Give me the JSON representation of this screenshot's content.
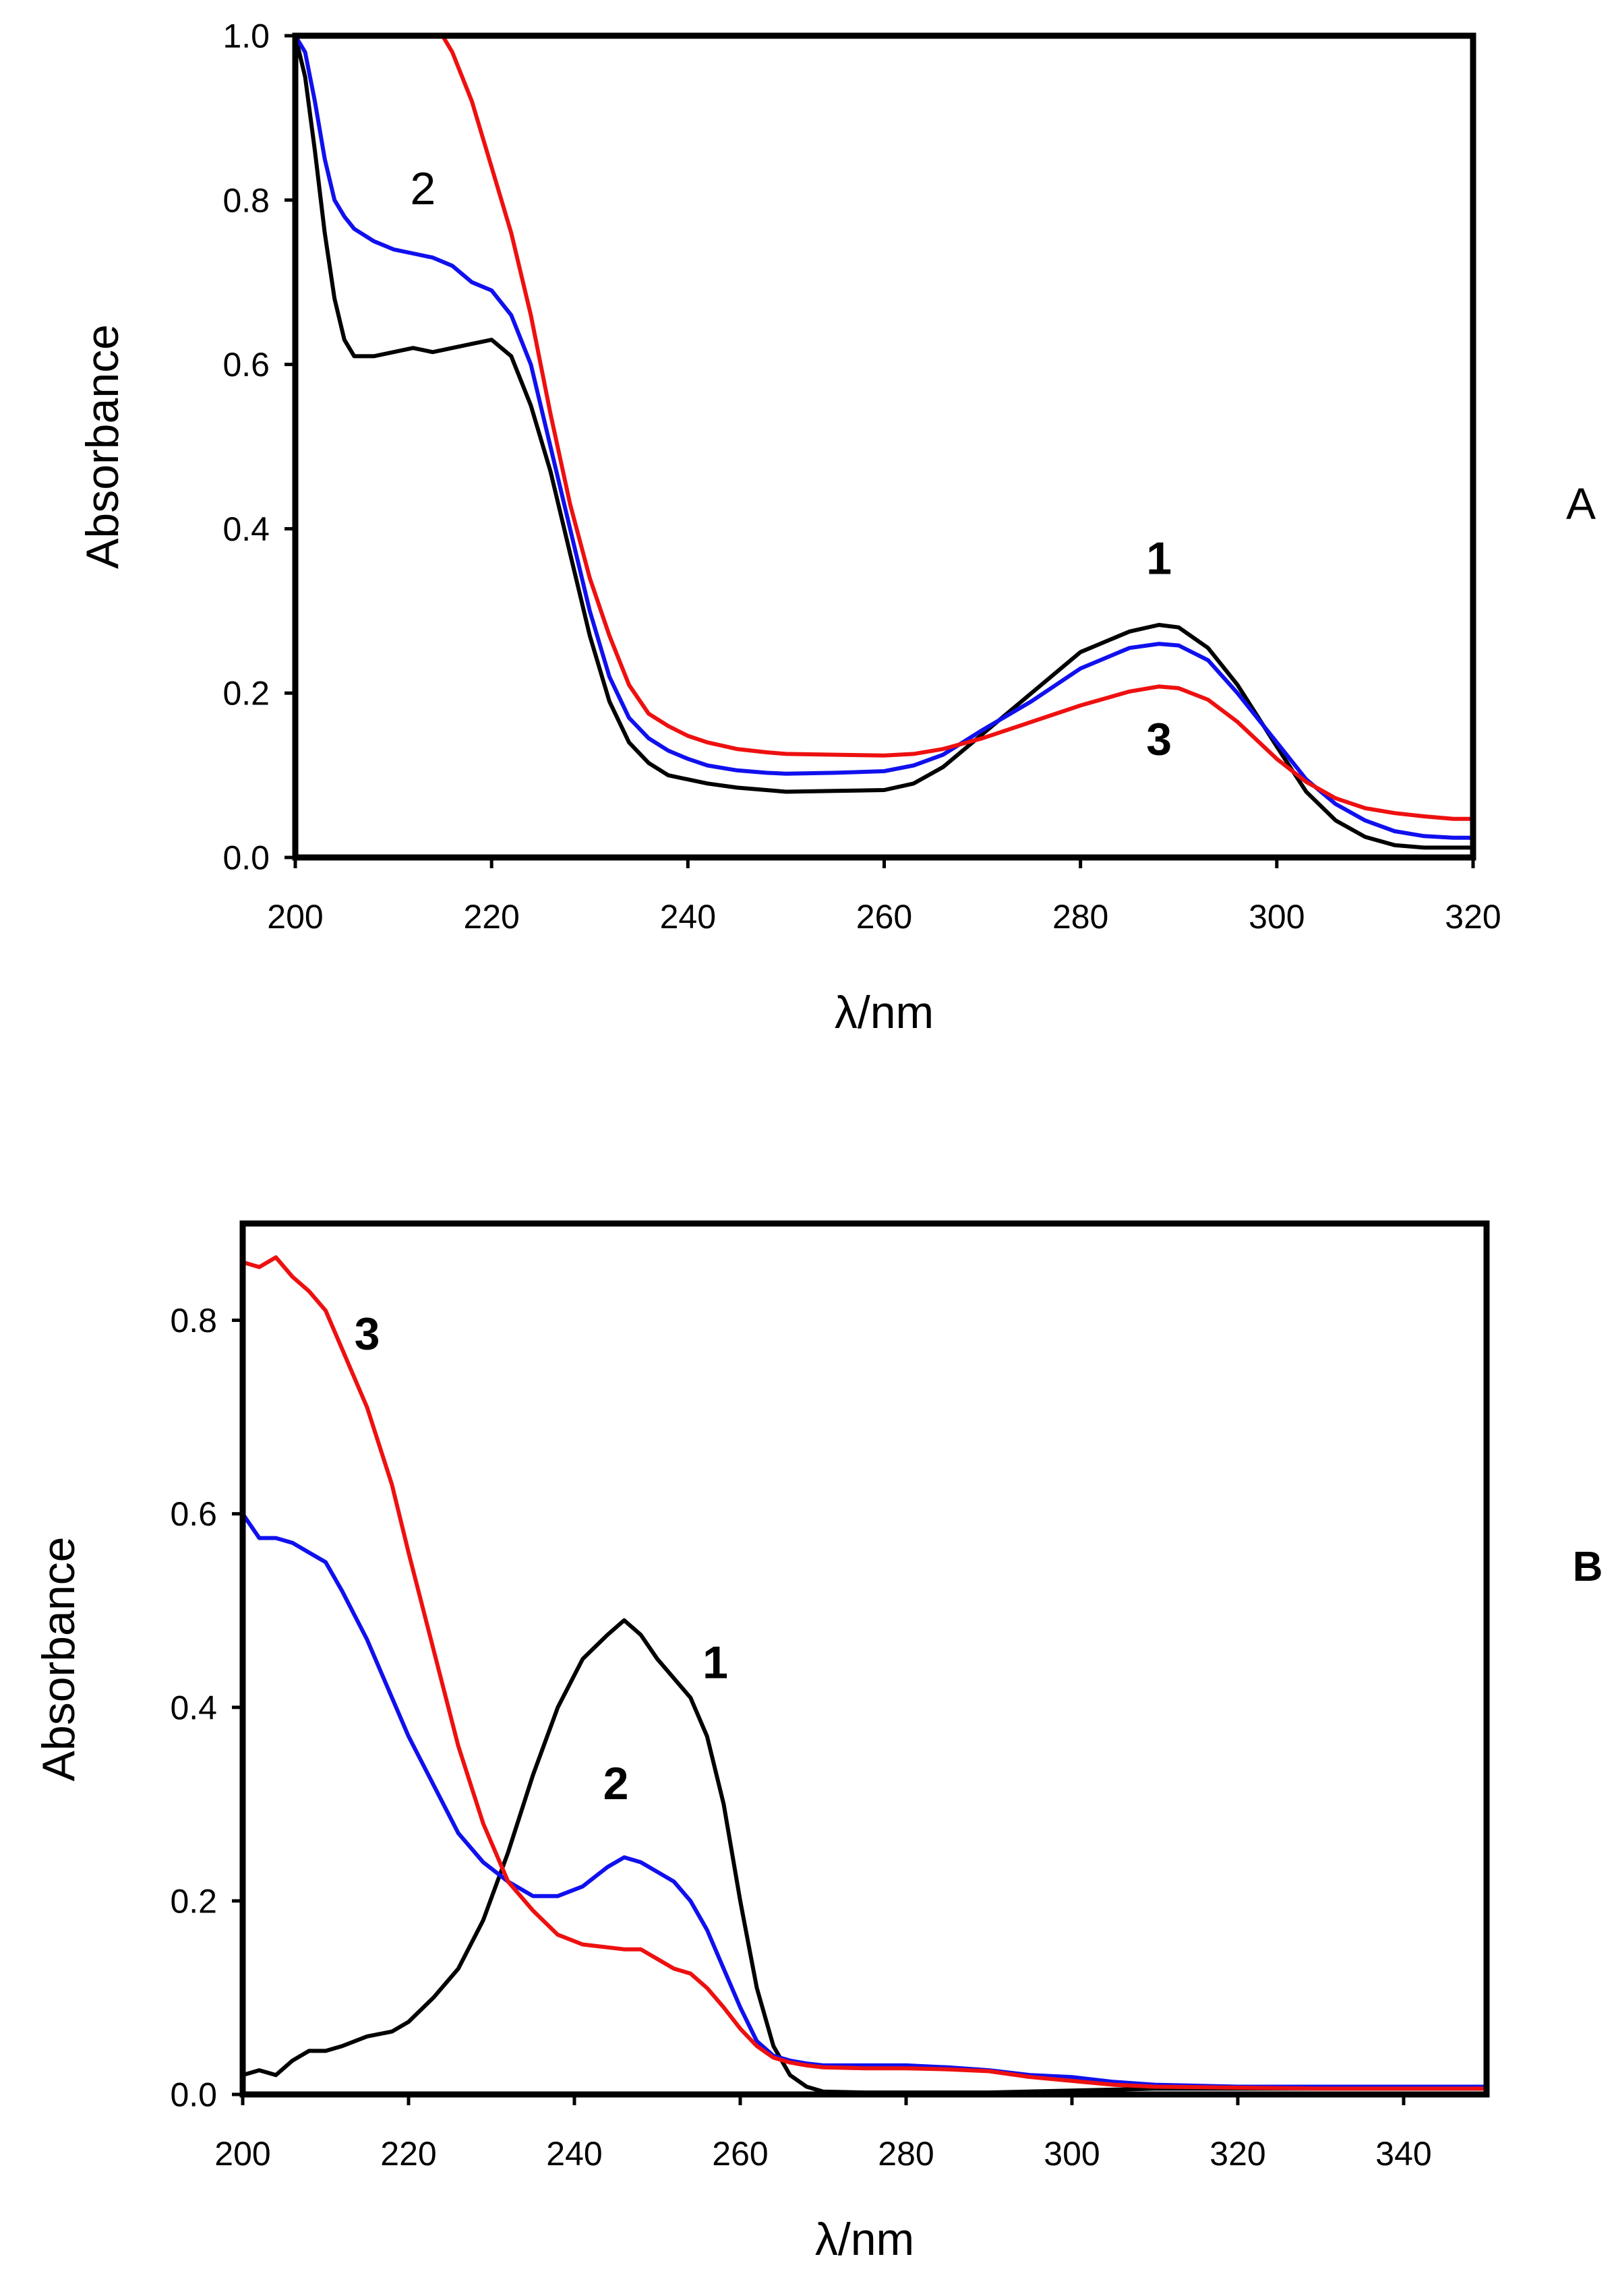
{
  "chart_data": [
    {
      "type": "line",
      "panel_label": "A",
      "xlabel": "λ/nm",
      "ylabel": "Absorbance",
      "xlim": [
        200,
        320
      ],
      "ylim": [
        0,
        1.0
      ],
      "xticks": [
        200,
        220,
        240,
        260,
        280,
        300,
        320
      ],
      "yticks": [
        0.0,
        0.2,
        0.4,
        0.6,
        0.8,
        1.0
      ],
      "xtick_labels": [
        "200",
        "220",
        "240",
        "260",
        "280",
        "300",
        "320"
      ],
      "ytick_labels": [
        "0.0",
        "0.2",
        "0.4",
        "0.6",
        "0.8",
        "1.0"
      ],
      "grid": false,
      "series": [
        {
          "name": "1",
          "color": "#000000",
          "x": [
            200,
            201,
            202,
            203,
            204,
            205,
            206,
            208,
            210,
            212,
            214,
            216,
            218,
            220,
            222,
            224,
            226,
            228,
            230,
            232,
            234,
            236,
            238,
            240,
            242,
            245,
            248,
            250,
            255,
            260,
            263,
            266,
            270,
            275,
            280,
            285,
            288,
            290,
            293,
            296,
            300,
            303,
            306,
            309,
            312,
            315,
            318,
            320
          ],
          "y": [
            1.0,
            0.95,
            0.86,
            0.76,
            0.68,
            0.63,
            0.61,
            0.61,
            0.615,
            0.62,
            0.615,
            0.62,
            0.625,
            0.63,
            0.61,
            0.55,
            0.47,
            0.37,
            0.27,
            0.19,
            0.14,
            0.115,
            0.1,
            0.095,
            0.09,
            0.085,
            0.082,
            0.08,
            0.081,
            0.082,
            0.09,
            0.11,
            0.15,
            0.2,
            0.25,
            0.275,
            0.283,
            0.28,
            0.255,
            0.21,
            0.135,
            0.08,
            0.045,
            0.025,
            0.015,
            0.012,
            0.012,
            0.012
          ]
        },
        {
          "name": "2",
          "color": "#1010ee",
          "x": [
            200,
            201,
            202,
            203,
            204,
            205,
            206,
            208,
            210,
            212,
            214,
            216,
            218,
            220,
            222,
            224,
            226,
            228,
            230,
            232,
            234,
            236,
            238,
            240,
            242,
            245,
            248,
            250,
            255,
            260,
            263,
            266,
            270,
            275,
            280,
            285,
            288,
            290,
            293,
            296,
            300,
            303,
            306,
            309,
            312,
            315,
            318,
            320
          ],
          "y": [
            1.0,
            0.98,
            0.92,
            0.85,
            0.8,
            0.78,
            0.765,
            0.75,
            0.74,
            0.735,
            0.73,
            0.72,
            0.7,
            0.69,
            0.66,
            0.6,
            0.5,
            0.4,
            0.3,
            0.22,
            0.17,
            0.145,
            0.13,
            0.12,
            0.112,
            0.106,
            0.103,
            0.102,
            0.103,
            0.105,
            0.112,
            0.125,
            0.155,
            0.19,
            0.23,
            0.255,
            0.26,
            0.258,
            0.24,
            0.2,
            0.14,
            0.095,
            0.065,
            0.045,
            0.032,
            0.026,
            0.024,
            0.024
          ]
        },
        {
          "name": "3",
          "color": "#ee1010",
          "x": [
            215,
            216,
            217,
            218,
            219,
            220,
            222,
            224,
            226,
            228,
            230,
            232,
            234,
            236,
            238,
            240,
            242,
            245,
            248,
            250,
            255,
            260,
            263,
            266,
            270,
            275,
            280,
            285,
            288,
            290,
            293,
            296,
            300,
            303,
            306,
            309,
            312,
            315,
            318,
            320
          ],
          "y": [
            1.0,
            0.98,
            0.95,
            0.92,
            0.88,
            0.84,
            0.76,
            0.66,
            0.54,
            0.43,
            0.34,
            0.27,
            0.21,
            0.175,
            0.16,
            0.148,
            0.14,
            0.132,
            0.128,
            0.126,
            0.125,
            0.124,
            0.126,
            0.132,
            0.145,
            0.165,
            0.185,
            0.202,
            0.208,
            0.206,
            0.192,
            0.165,
            0.12,
            0.092,
            0.072,
            0.06,
            0.054,
            0.05,
            0.047,
            0.047
          ]
        }
      ],
      "annotations": [
        {
          "text": "2",
          "x": 213,
          "y": 0.795,
          "bold": false
        },
        {
          "text": "1",
          "x": 288,
          "y": 0.345,
          "bold": true
        },
        {
          "text": "3",
          "x": 288,
          "y": 0.125,
          "bold": true
        }
      ]
    },
    {
      "type": "line",
      "panel_label": "B",
      "xlabel": "λ/nm",
      "ylabel": "Absorbance",
      "xlim": [
        200,
        350
      ],
      "ylim": [
        0,
        0.9
      ],
      "xticks": [
        200,
        220,
        240,
        260,
        280,
        300,
        320,
        340
      ],
      "yticks": [
        0.0,
        0.2,
        0.4,
        0.6,
        0.8
      ],
      "xtick_labels": [
        "200",
        "220",
        "240",
        "260",
        "280",
        "300",
        "320",
        "340"
      ],
      "ytick_labels": [
        "0.0",
        "0.2",
        "0.4",
        "0.6",
        "0.8"
      ],
      "grid": false,
      "series": [
        {
          "name": "1",
          "color": "#000000",
          "x": [
            200,
            202,
            204,
            206,
            208,
            210,
            212,
            215,
            218,
            220,
            223,
            226,
            229,
            232,
            235,
            238,
            241,
            244,
            246,
            248,
            250,
            252,
            254,
            256,
            258,
            260,
            262,
            264,
            266,
            268,
            270,
            275,
            280,
            290,
            300,
            310,
            320,
            330,
            340,
            350
          ],
          "y": [
            0.02,
            0.025,
            0.02,
            0.035,
            0.045,
            0.045,
            0.05,
            0.06,
            0.065,
            0.075,
            0.1,
            0.13,
            0.18,
            0.25,
            0.33,
            0.4,
            0.45,
            0.475,
            0.49,
            0.475,
            0.45,
            0.43,
            0.41,
            0.37,
            0.3,
            0.2,
            0.11,
            0.05,
            0.02,
            0.008,
            0.003,
            0.002,
            0.002,
            0.002,
            0.004,
            0.006,
            0.006,
            0.006,
            0.006,
            0.006
          ]
        },
        {
          "name": "2",
          "color": "#1010ee",
          "x": [
            200,
            202,
            204,
            206,
            208,
            210,
            212,
            215,
            218,
            220,
            223,
            226,
            229,
            232,
            235,
            238,
            241,
            244,
            246,
            248,
            250,
            252,
            254,
            256,
            258,
            260,
            262,
            264,
            266,
            268,
            270,
            275,
            280,
            285,
            290,
            295,
            300,
            305,
            310,
            320,
            330,
            340,
            350
          ],
          "y": [
            0.6,
            0.575,
            0.575,
            0.57,
            0.56,
            0.55,
            0.52,
            0.47,
            0.41,
            0.37,
            0.32,
            0.27,
            0.24,
            0.22,
            0.205,
            0.205,
            0.215,
            0.235,
            0.245,
            0.24,
            0.23,
            0.22,
            0.2,
            0.17,
            0.13,
            0.09,
            0.055,
            0.04,
            0.035,
            0.032,
            0.03,
            0.03,
            0.03,
            0.028,
            0.025,
            0.02,
            0.018,
            0.013,
            0.01,
            0.008,
            0.008,
            0.008,
            0.008
          ]
        },
        {
          "name": "3",
          "color": "#ee1010",
          "x": [
            200,
            202,
            204,
            206,
            208,
            210,
            212,
            215,
            218,
            220,
            223,
            226,
            229,
            232,
            235,
            238,
            241,
            244,
            246,
            248,
            250,
            252,
            254,
            256,
            258,
            260,
            262,
            264,
            266,
            268,
            270,
            275,
            280,
            285,
            290,
            295,
            300,
            305,
            310,
            320,
            330,
            340,
            350
          ],
          "y": [
            0.86,
            0.855,
            0.865,
            0.845,
            0.83,
            0.81,
            0.77,
            0.71,
            0.63,
            0.56,
            0.46,
            0.36,
            0.28,
            0.22,
            0.19,
            0.165,
            0.155,
            0.152,
            0.15,
            0.15,
            0.14,
            0.13,
            0.125,
            0.11,
            0.09,
            0.068,
            0.05,
            0.038,
            0.033,
            0.03,
            0.028,
            0.027,
            0.027,
            0.026,
            0.024,
            0.018,
            0.014,
            0.01,
            0.008,
            0.007,
            0.006,
            0.006,
            0.006
          ]
        }
      ],
      "annotations": [
        {
          "text": "3",
          "x": 215,
          "y": 0.77,
          "bold": true
        },
        {
          "text": "1",
          "x": 257,
          "y": 0.43,
          "bold": true
        },
        {
          "text": "2",
          "x": 245,
          "y": 0.305,
          "bold": true
        }
      ]
    }
  ]
}
